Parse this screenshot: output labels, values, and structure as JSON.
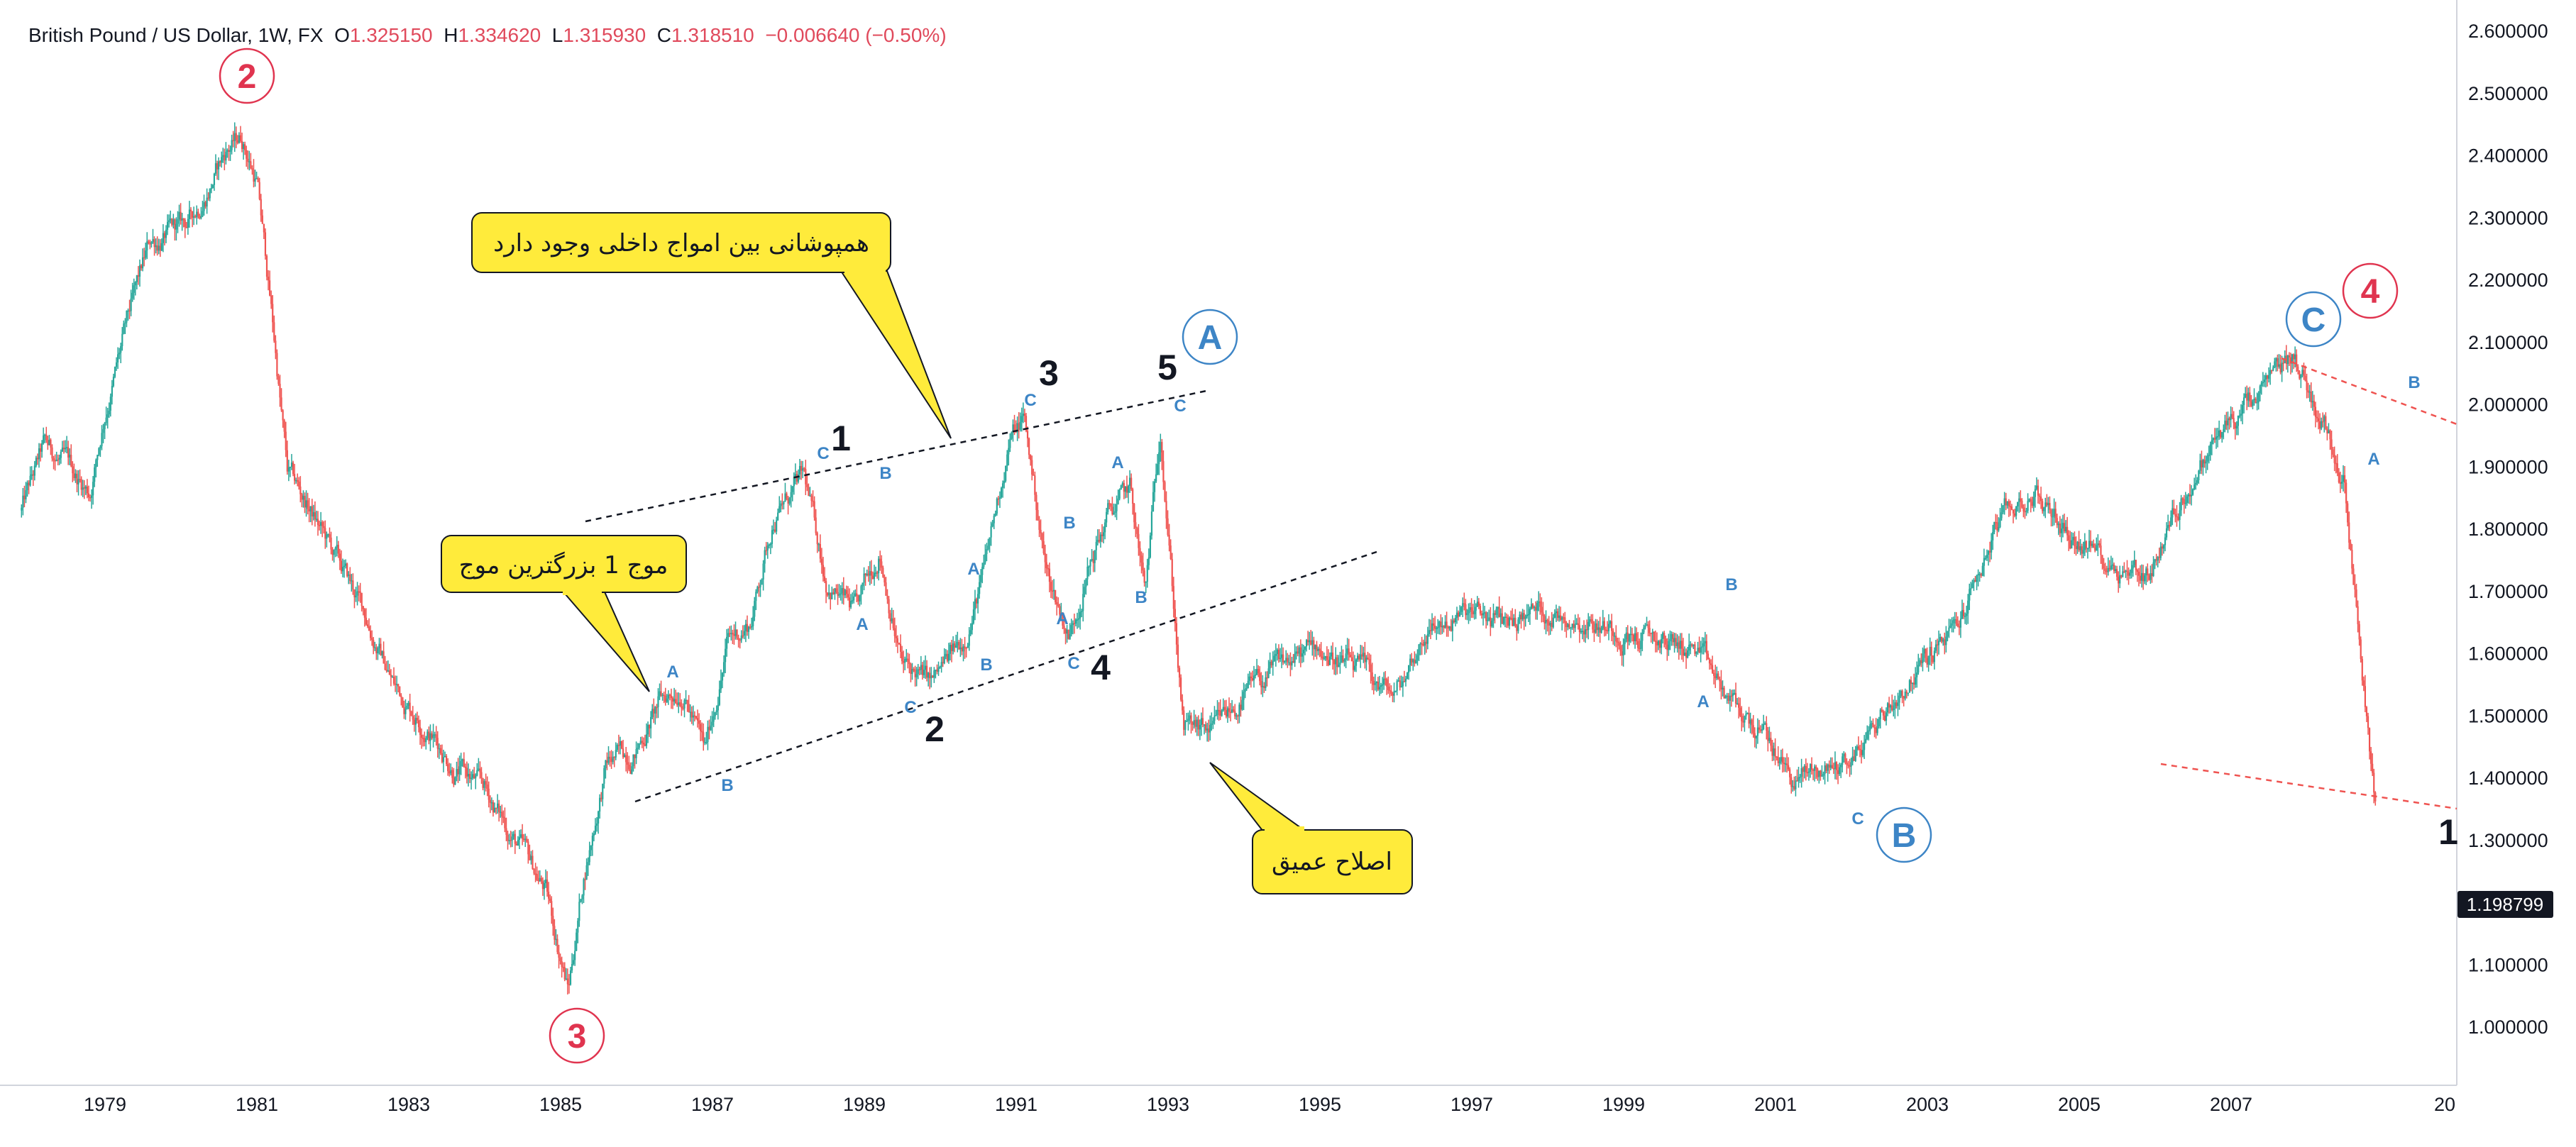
{
  "header": {
    "symbol": "British Pound / US Dollar, 1W, FX",
    "o_label": "O",
    "o_value": "1.325150",
    "h_label": "H",
    "h_value": "1.334620",
    "l_label": "L",
    "l_value": "1.315930",
    "c_label": "C",
    "c_value": "1.318510",
    "change": "−0.006640 (−0.50%)"
  },
  "price_scale": {
    "ticks": [
      "2.600000",
      "2.500000",
      "2.400000",
      "2.300000",
      "2.200000",
      "2.100000",
      "2.000000",
      "1.900000",
      "1.800000",
      "1.700000",
      "1.600000",
      "1.500000",
      "1.400000",
      "1.300000",
      "1.100000",
      "1.000000"
    ],
    "current_price": "1.198799"
  },
  "time_scale": {
    "ticks": [
      "1979",
      "1981",
      "1983",
      "1985",
      "1987",
      "1989",
      "1991",
      "1993",
      "1995",
      "1997",
      "1999",
      "2001",
      "2003",
      "2005",
      "2007",
      "20"
    ]
  },
  "colors": {
    "up": "#26a69a",
    "down": "#ef5350",
    "red_label": "#e0344f",
    "blue_label": "#3d85c6",
    "callout_bg": "#ffeb3b"
  },
  "annotations": {
    "major_labels": [
      {
        "text": "2",
        "color": "red"
      },
      {
        "text": "3",
        "color": "red"
      },
      {
        "text": "4",
        "color": "red"
      },
      {
        "text": "A",
        "color": "blue"
      },
      {
        "text": "B",
        "color": "blue"
      },
      {
        "text": "C",
        "color": "blue"
      }
    ],
    "wave_labels": [
      "1",
      "2",
      "3",
      "4",
      "5",
      "1"
    ],
    "sub_labels": [
      "A",
      "B",
      "C"
    ],
    "callouts": [
      {
        "text": "همپوشانی بین امواج داخلی وجود دارد"
      },
      {
        "text": "موج 1 بزرگترین موج"
      },
      {
        "text": "اصلاح عمیق"
      }
    ]
  },
  "chart_data": {
    "type": "candlestick",
    "title": "British Pound / US Dollar, 1W, FX",
    "xlabel": "",
    "ylabel": "",
    "ylim": [
      0.93,
      2.63
    ],
    "xlim": [
      1977.9,
      2008.9
    ],
    "grid": false,
    "series": [
      {
        "x": [
          1977.9,
          1978.2,
          1978.5,
          1978.8,
          1979.0,
          1979.3,
          1979.6,
          1979.8,
          1980.1,
          1980.4,
          1980.6,
          1980.8,
          1981.0,
          1981.2,
          1981.4,
          1981.7,
          1982.0,
          1982.4,
          1982.8,
          1983.2,
          1983.6,
          1984.0,
          1984.4,
          1984.8,
          1985.1,
          1985.3,
          1985.6,
          1986.0,
          1986.3,
          1986.6,
          1986.9,
          1987.2,
          1987.5,
          1987.8,
          1988.2,
          1988.5,
          1988.9,
          1989.2,
          1989.5,
          1989.9,
          1990.3,
          1990.6,
          1990.9,
          1991.1,
          1991.4,
          1991.7,
          1991.9,
          1992.2,
          1992.5,
          1992.7,
          1992.9,
          1993.2,
          1993.6,
          1994.0,
          1994.5,
          1995.0,
          1995.5,
          1996.0,
          1996.4,
          1996.9,
          1997.4,
          1997.9,
          1998.4,
          1998.9,
          1999.4,
          1999.9,
          2000.4,
          2000.9,
          2001.2,
          2001.6,
          2002.0,
          2002.4,
          2002.9,
          2003.4,
          2003.9,
          2004.4,
          2004.9,
          2005.4,
          2005.9,
          2006.4,
          2006.9,
          2007.4,
          2007.8,
          2008.2,
          2008.5,
          2008.9
        ],
        "y": [
          1.83,
          1.93,
          1.9,
          1.86,
          1.99,
          2.13,
          2.26,
          2.27,
          2.29,
          2.36,
          2.41,
          2.43,
          2.36,
          2.14,
          1.89,
          1.83,
          1.76,
          1.67,
          1.55,
          1.49,
          1.42,
          1.38,
          1.3,
          1.22,
          1.06,
          1.24,
          1.42,
          1.45,
          1.52,
          1.55,
          1.44,
          1.62,
          1.65,
          1.82,
          1.88,
          1.72,
          1.66,
          1.77,
          1.58,
          1.55,
          1.62,
          1.74,
          1.94,
          1.98,
          1.73,
          1.63,
          1.72,
          1.82,
          1.86,
          1.69,
          1.97,
          1.48,
          1.47,
          1.53,
          1.58,
          1.61,
          1.57,
          1.53,
          1.64,
          1.66,
          1.65,
          1.67,
          1.66,
          1.64,
          1.62,
          1.61,
          1.52,
          1.46,
          1.4,
          1.41,
          1.43,
          1.5,
          1.58,
          1.64,
          1.8,
          1.86,
          1.79,
          1.75,
          1.73,
          1.86,
          1.96,
          2.01,
          2.08,
          1.98,
          1.88,
          1.36
        ]
      }
    ]
  }
}
